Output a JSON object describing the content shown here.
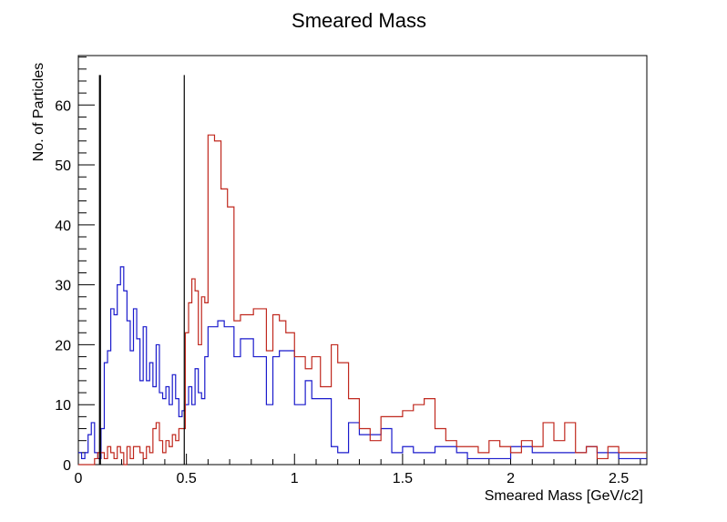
{
  "chart_data": {
    "type": "histogram",
    "title": "Smeared Mass",
    "xlabel": "Smeared Mass [GeV/c2]",
    "ylabel": "No. of Particles",
    "xlim": [
      0,
      2.63
    ],
    "ylim": [
      0,
      68.25
    ],
    "x_ticks": [
      "0",
      "0.5",
      "1",
      "1.5",
      "2",
      "2.5"
    ],
    "x_tick_values": [
      0,
      0.5,
      1,
      1.5,
      2,
      2.5
    ],
    "y_ticks": [
      "0",
      "10",
      "20",
      "30",
      "40",
      "50",
      "60"
    ],
    "y_tick_values": [
      0,
      10,
      20,
      30,
      40,
      50,
      60
    ],
    "grid": false,
    "vertical_lines": [
      {
        "x": 0.1,
        "color": "#000000",
        "bold": true
      },
      {
        "x": 0.49,
        "color": "#000000",
        "bold": false
      }
    ],
    "series": [
      {
        "color": "#1a1acc",
        "edges": [
          0,
          0.015,
          0.03,
          0.045,
          0.06,
          0.075,
          0.09,
          0.105,
          0.12,
          0.135,
          0.15,
          0.165,
          0.18,
          0.195,
          0.21,
          0.225,
          0.24,
          0.255,
          0.27,
          0.285,
          0.3,
          0.315,
          0.33,
          0.345,
          0.36,
          0.375,
          0.39,
          0.405,
          0.42,
          0.435,
          0.45,
          0.465,
          0.48,
          0.495,
          0.51,
          0.525,
          0.54,
          0.555,
          0.57,
          0.585,
          0.6,
          0.615,
          0.645,
          0.675,
          0.72,
          0.75,
          0.81,
          0.87,
          0.9,
          0.93,
          0.96,
          1.0,
          1.05,
          1.08,
          1.17,
          1.2,
          1.25,
          1.3,
          1.4,
          1.45,
          1.5,
          1.55,
          1.6,
          1.65,
          1.75,
          1.8,
          1.9,
          2.0,
          2.1,
          2.15,
          2.25,
          2.3,
          2.35,
          2.4,
          2.45,
          2.5,
          2.55,
          2.6,
          2.63
        ],
        "values": [
          2,
          1,
          2,
          5,
          7,
          2,
          1,
          6,
          17,
          19,
          26,
          25,
          30,
          33,
          29,
          24,
          19,
          26,
          21,
          14,
          23,
          14,
          17,
          13,
          20,
          12,
          11,
          13,
          10,
          15,
          11,
          8,
          9,
          10,
          13,
          10,
          16,
          12,
          11,
          18,
          23,
          23,
          24,
          23,
          18,
          21,
          18,
          10,
          18,
          19,
          19,
          10,
          14,
          11,
          3,
          2,
          7,
          5,
          6,
          2,
          3,
          2,
          2,
          3,
          2,
          1,
          1,
          3,
          2,
          2,
          2,
          2,
          3,
          2,
          2,
          1,
          1,
          1
        ],
        "bins_note": "piecewise-constant step values read from figure"
      },
      {
        "color": "#c0281e",
        "edges": [
          0,
          0.03,
          0.075,
          0.09,
          0.12,
          0.135,
          0.15,
          0.165,
          0.18,
          0.195,
          0.21,
          0.225,
          0.24,
          0.255,
          0.27,
          0.285,
          0.3,
          0.315,
          0.33,
          0.345,
          0.36,
          0.375,
          0.39,
          0.405,
          0.42,
          0.435,
          0.45,
          0.465,
          0.48,
          0.495,
          0.51,
          0.525,
          0.54,
          0.555,
          0.57,
          0.585,
          0.6,
          0.63,
          0.66,
          0.69,
          0.72,
          0.75,
          0.81,
          0.87,
          0.9,
          0.93,
          0.96,
          1.0,
          1.05,
          1.08,
          1.12,
          1.17,
          1.2,
          1.25,
          1.3,
          1.35,
          1.4,
          1.45,
          1.5,
          1.55,
          1.6,
          1.65,
          1.7,
          1.75,
          1.8,
          1.85,
          1.9,
          1.95,
          2.0,
          2.05,
          2.1,
          2.15,
          2.2,
          2.25,
          2.3,
          2.35,
          2.4,
          2.45,
          2.5,
          2.55,
          2.63
        ],
        "values": [
          0,
          0,
          1,
          2,
          1,
          3,
          2,
          1,
          3,
          2,
          0,
          3,
          1,
          3,
          3,
          2,
          1,
          3,
          2,
          6,
          7,
          4,
          2,
          4,
          3,
          5,
          4,
          6,
          6,
          22,
          27,
          31,
          29,
          20,
          28,
          27,
          55,
          54,
          46,
          43,
          24,
          25,
          26,
          19,
          25,
          24,
          22,
          18,
          16,
          18,
          13,
          20,
          17,
          11,
          6,
          4,
          8,
          8,
          9,
          10,
          11,
          6,
          4,
          3,
          3,
          2,
          4,
          3,
          2,
          4,
          3,
          7,
          4,
          7,
          2,
          3,
          1,
          3,
          2,
          2
        ],
        "bins_note": "piecewise-constant step values read from figure"
      }
    ]
  }
}
